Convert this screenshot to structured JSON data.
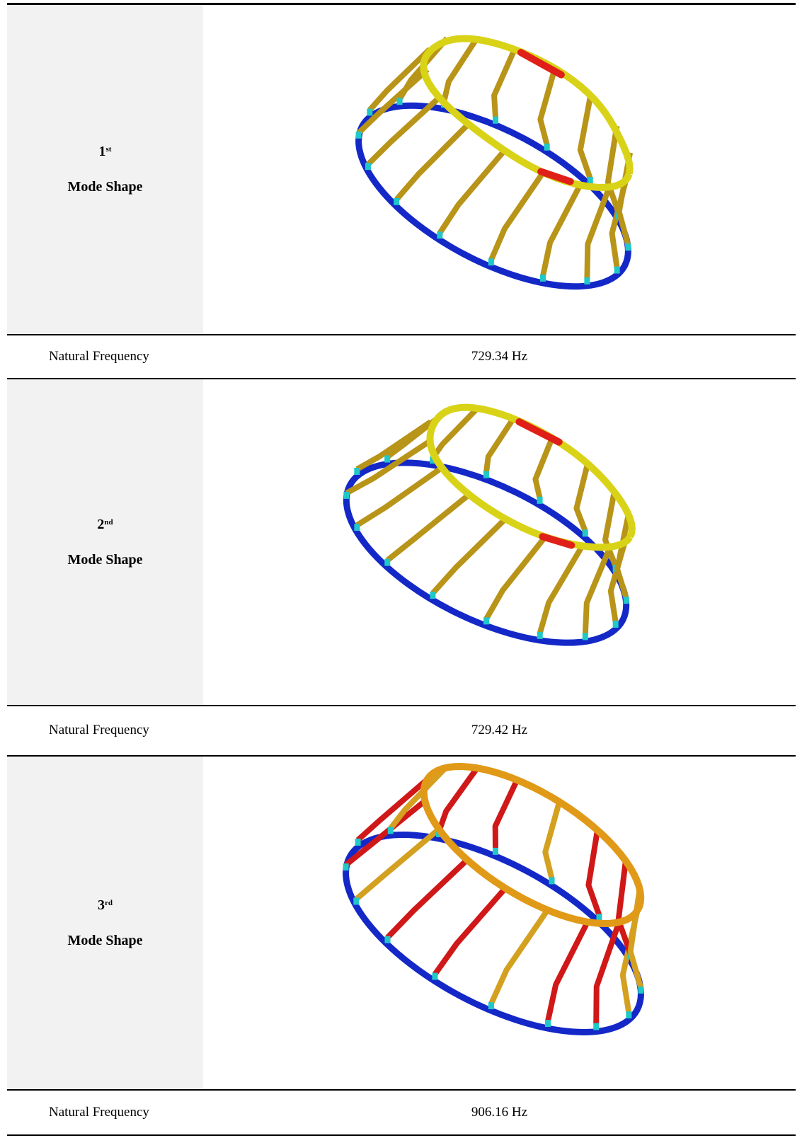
{
  "rows": [
    {
      "ordinal": "1",
      "ordinal_suffix": "st",
      "caption": "Mode Shape",
      "freq_label": "Natural Frequency",
      "freq_value": "729.34 Hz",
      "image_icon": "ring-structure-mode-shape-1",
      "colors": {
        "base_ring": "#1428c8",
        "top_ring": "#d9d318",
        "spokes": "#b89418",
        "peak": "#e02018",
        "transition": "#20c8c8"
      }
    },
    {
      "ordinal": "2",
      "ordinal_suffix": "nd",
      "caption": "Mode Shape",
      "freq_label": "Natural Frequency",
      "freq_value": "729.42 Hz",
      "image_icon": "ring-structure-mode-shape-2",
      "colors": {
        "base_ring": "#1428c8",
        "top_ring": "#d9d318",
        "spokes": "#b89418",
        "peak": "#e02018",
        "transition": "#20c8c8"
      }
    },
    {
      "ordinal": "3",
      "ordinal_suffix": "rd",
      "caption": "Mode Shape",
      "freq_label": "Natural Frequency",
      "freq_value": "906.16 Hz",
      "image_icon": "ring-structure-mode-shape-3",
      "colors": {
        "base_ring": "#1428c8",
        "top_ring": "#e09a18",
        "spokes": "#d4a020",
        "peak": "#d01818",
        "transition": "#20c8c8"
      }
    }
  ]
}
